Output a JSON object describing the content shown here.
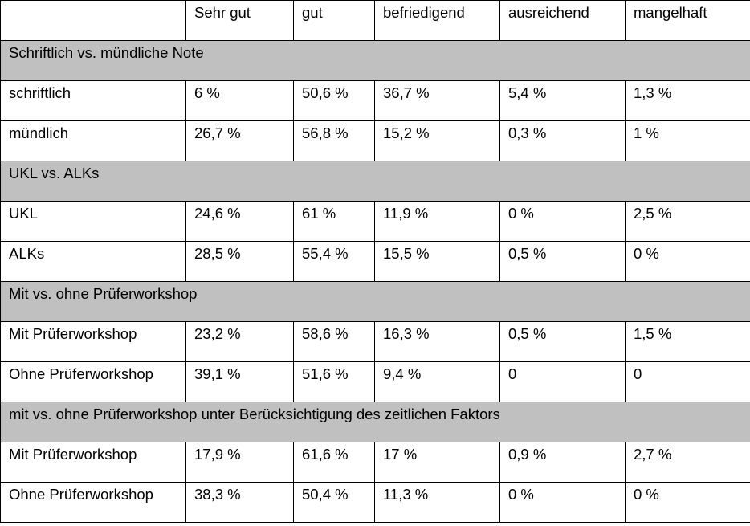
{
  "table": {
    "headers": [
      "",
      "Sehr gut",
      "gut",
      "befriedigend",
      "ausreichend",
      "mangelhaft"
    ],
    "groups": [
      {
        "title": "Schriftlich vs. mündliche Note",
        "rows": [
          [
            "schriftlich",
            "6 %",
            "50,6 %",
            "36,7 %",
            "5,4 %",
            "1,3 %"
          ],
          [
            "mündlich",
            "26,7 %",
            "56,8 %",
            "15,2 %",
            "0,3 %",
            "1 %"
          ]
        ]
      },
      {
        "title": "UKL vs. ALKs",
        "rows": [
          [
            "UKL",
            "24,6 %",
            "61 %",
            "11,9 %",
            "0 %",
            "2,5 %"
          ],
          [
            "ALKs",
            "28,5 %",
            "55,4 %",
            "15,5 %",
            "0,5 %",
            "0 %"
          ]
        ]
      },
      {
        "title": "Mit vs. ohne Prüferworkshop",
        "rows": [
          [
            "Mit Prüferworkshop",
            "23,2 %",
            "58,6 %",
            "16,3 %",
            "0,5 %",
            "1,5 %"
          ],
          [
            "Ohne Prüferworkshop",
            "39,1 %",
            "51,6 %",
            "9,4 %",
            "0",
            "0"
          ]
        ]
      },
      {
        "title": "mit vs. ohne Prüferworkshop unter Berücksichtigung des zeitlichen Faktors",
        "rows": [
          [
            "Mit Prüferworkshop",
            "17,9 %",
            "61,6 %",
            "17 %",
            "0,9 %",
            "2,7 %"
          ],
          [
            "Ohne Prüferworkshop",
            "38,3 %",
            "50,4 %",
            "11,3 %",
            "0 %",
            "0 %"
          ]
        ]
      }
    ],
    "colors": {
      "section_background": "#c0c0c0",
      "border": "#000000",
      "text": "#000000"
    }
  }
}
